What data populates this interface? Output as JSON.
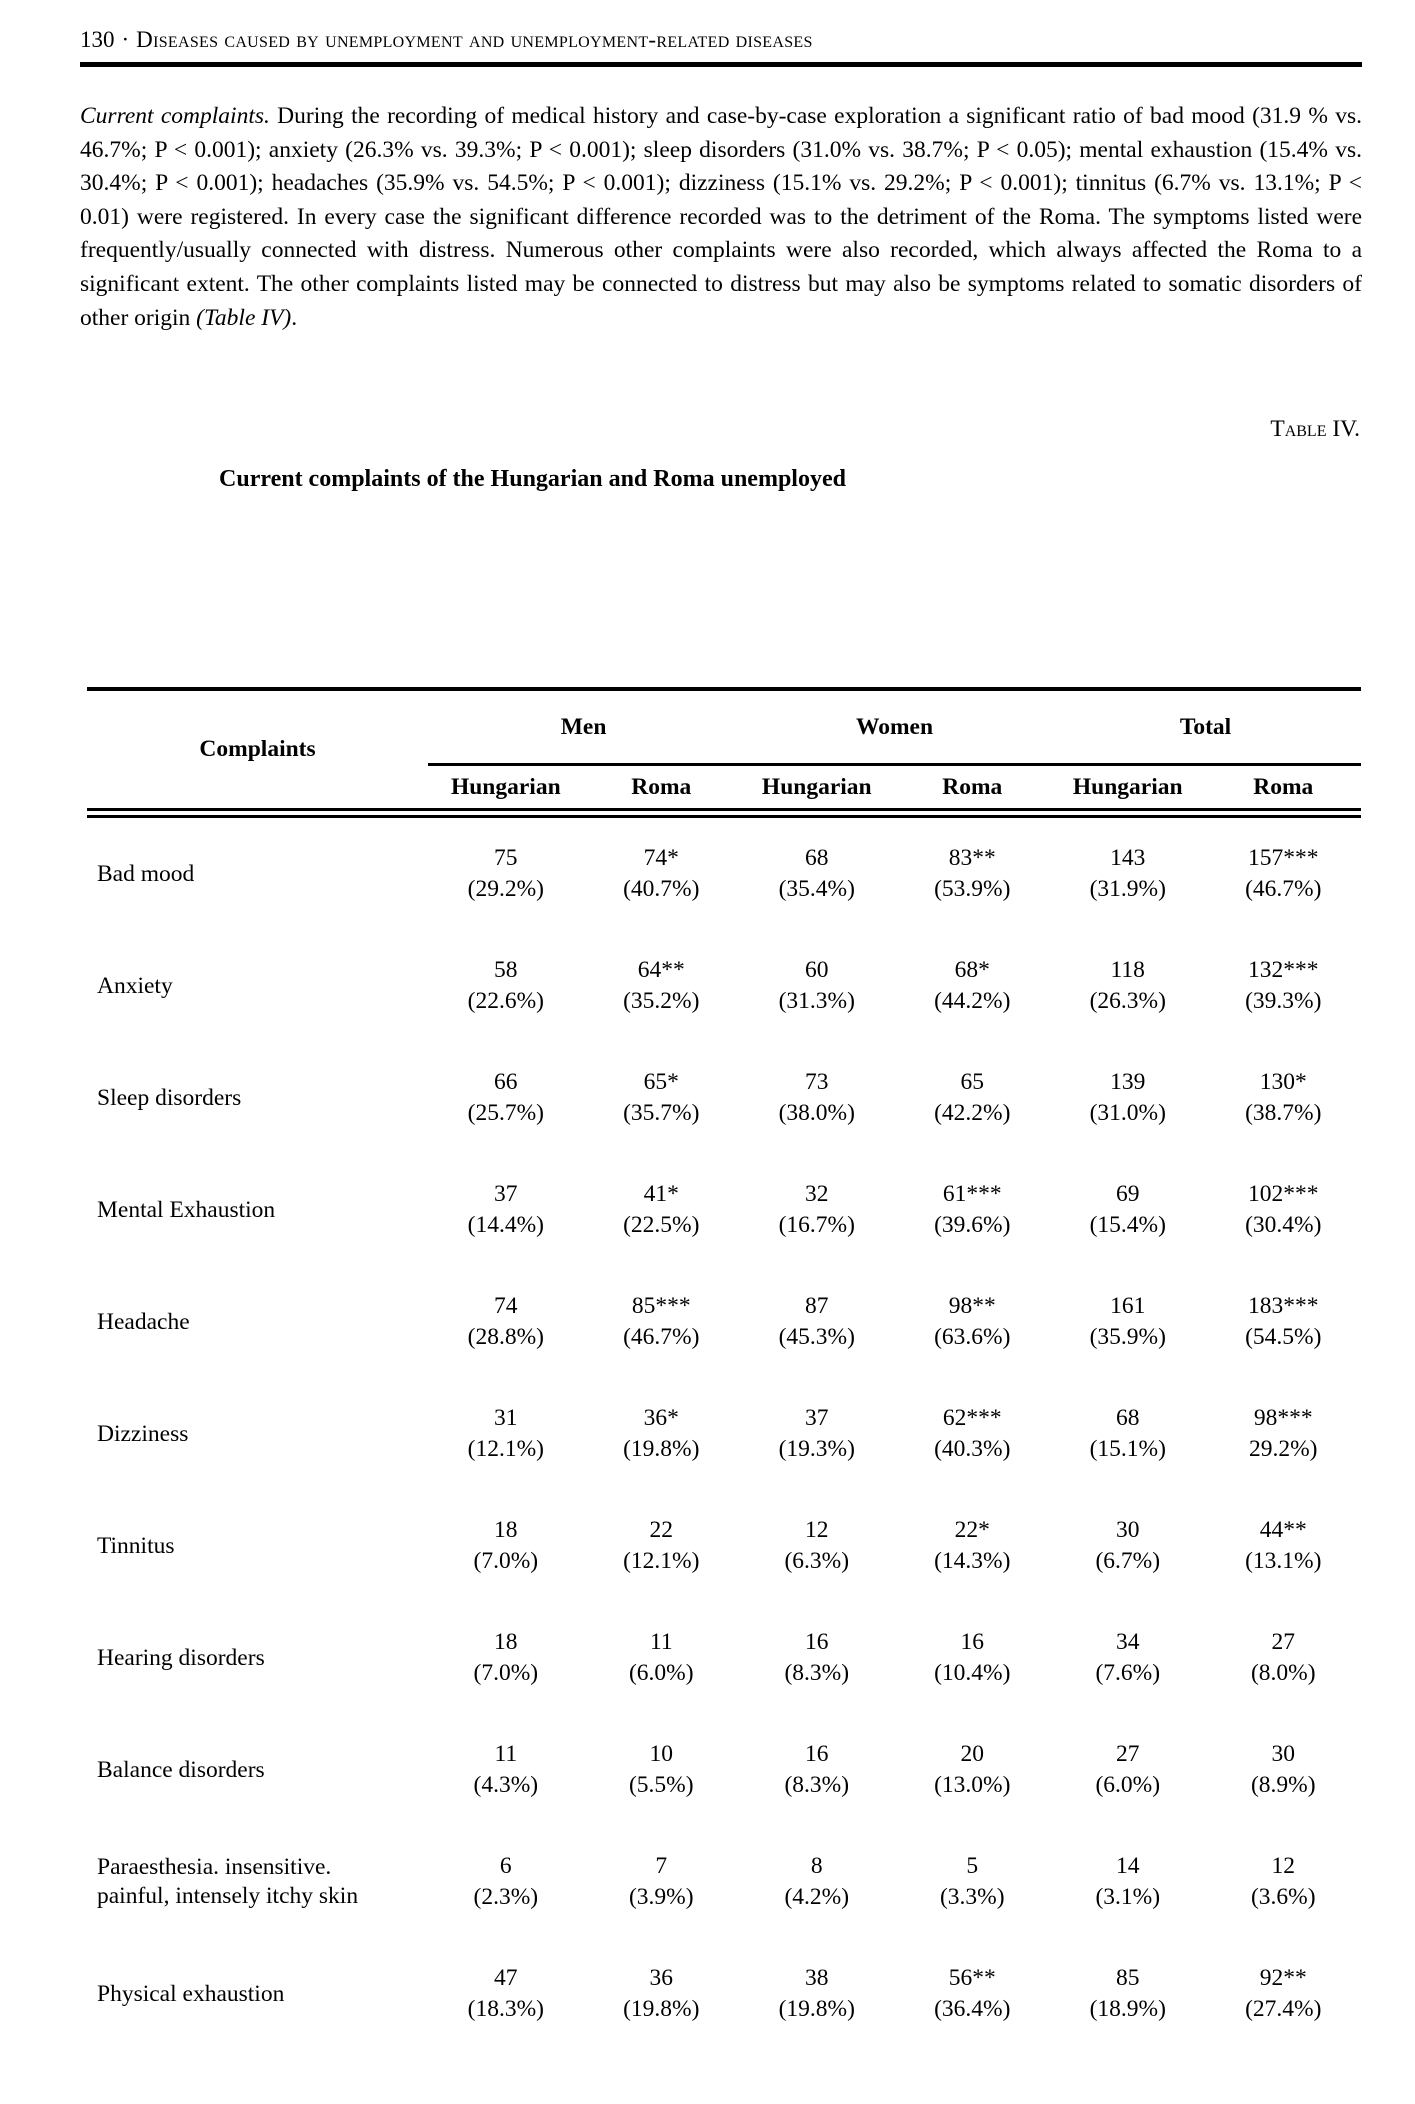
{
  "page": {
    "number": "130",
    "separator": "·",
    "running_title": "Diseases caused by unemployment and unemployment-related diseases"
  },
  "paragraph": {
    "lead_italic": "Current complaints.",
    "body": " During the recording of medical history and case-by-case exploration a significant ratio of bad mood (31.9 % vs. 46.7%; P < 0.001); anxiety (26.3% vs. 39.3%; P < 0.001); sleep disorders (31.0% vs. 38.7%; P < 0.05); mental exhaustion (15.4% vs. 30.4%; P < 0.001); headaches (35.9% vs. 54.5%; P < 0.001); dizziness (15.1% vs. 29.2%; P < 0.001); tinnitus (6.7% vs. 13.1%; P < 0.01) were registered. In every case the significant difference recorded was to the detriment of the Roma. The symptoms listed were frequently/usually connected with distress. Numerous other complaints were also recorded, which always affected the Roma to a significant extent. The other complaints listed may be connected to distress but may also be symptoms related to somatic disorders of other origin ",
    "tail_italic": "(Table IV)",
    "tail_end": "."
  },
  "table": {
    "label": "Table IV.",
    "title": "Current complaints of the Hungarian and Roma unemployed",
    "col_complaints": "Complaints",
    "groups": [
      "Men",
      "Women",
      "Total"
    ],
    "subheaders": [
      "Hungarian",
      "Roma",
      "Hungarian",
      "Roma",
      "Hungarian",
      "Roma"
    ],
    "rows": [
      {
        "label": [
          "Bad mood"
        ],
        "cells": [
          [
            "75",
            "(29.2%)"
          ],
          [
            "74*",
            "(40.7%)"
          ],
          [
            "68",
            "(35.4%)"
          ],
          [
            "83**",
            "(53.9%)"
          ],
          [
            "143",
            "(31.9%)"
          ],
          [
            "157***",
            "(46.7%)"
          ]
        ]
      },
      {
        "label": [
          "Anxiety"
        ],
        "cells": [
          [
            "58",
            "(22.6%)"
          ],
          [
            "64**",
            "(35.2%)"
          ],
          [
            "60",
            "(31.3%)"
          ],
          [
            "68*",
            "(44.2%)"
          ],
          [
            "118",
            "(26.3%)"
          ],
          [
            "132***",
            "(39.3%)"
          ]
        ]
      },
      {
        "label": [
          "Sleep disorders"
        ],
        "cells": [
          [
            "66",
            "(25.7%)"
          ],
          [
            "65*",
            "(35.7%)"
          ],
          [
            "73",
            "(38.0%)"
          ],
          [
            "65",
            "(42.2%)"
          ],
          [
            "139",
            "(31.0%)"
          ],
          [
            "130*",
            "(38.7%)"
          ]
        ]
      },
      {
        "label": [
          "Mental Exhaustion"
        ],
        "cells": [
          [
            "37",
            "(14.4%)"
          ],
          [
            "41*",
            "(22.5%)"
          ],
          [
            "32",
            "(16.7%)"
          ],
          [
            "61***",
            "(39.6%)"
          ],
          [
            "69",
            "(15.4%)"
          ],
          [
            "102***",
            "(30.4%)"
          ]
        ]
      },
      {
        "label": [
          "Headache"
        ],
        "cells": [
          [
            "74",
            "(28.8%)"
          ],
          [
            "85***",
            "(46.7%)"
          ],
          [
            "87",
            "(45.3%)"
          ],
          [
            "98**",
            "(63.6%)"
          ],
          [
            "161",
            "(35.9%)"
          ],
          [
            "183***",
            "(54.5%)"
          ]
        ]
      },
      {
        "label": [
          "Dizziness"
        ],
        "cells": [
          [
            "31",
            "(12.1%)"
          ],
          [
            "36*",
            "(19.8%)"
          ],
          [
            "37",
            "(19.3%)"
          ],
          [
            "62***",
            "(40.3%)"
          ],
          [
            "68",
            "(15.1%)"
          ],
          [
            "98***",
            "29.2%)"
          ]
        ]
      },
      {
        "label": [
          "Tinnitus"
        ],
        "cells": [
          [
            "18",
            "(7.0%)"
          ],
          [
            "22",
            "(12.1%)"
          ],
          [
            "12",
            "(6.3%)"
          ],
          [
            "22*",
            "(14.3%)"
          ],
          [
            "30",
            "(6.7%)"
          ],
          [
            "44**",
            "(13.1%)"
          ]
        ]
      },
      {
        "label": [
          "Hearing disorders"
        ],
        "cells": [
          [
            "18",
            "(7.0%)"
          ],
          [
            "11",
            "(6.0%)"
          ],
          [
            "16",
            "(8.3%)"
          ],
          [
            "16",
            "(10.4%)"
          ],
          [
            "34",
            "(7.6%)"
          ],
          [
            "27",
            "(8.0%)"
          ]
        ]
      },
      {
        "label": [
          "Balance disorders"
        ],
        "cells": [
          [
            "11",
            "(4.3%)"
          ],
          [
            "10",
            "(5.5%)"
          ],
          [
            "16",
            "(8.3%)"
          ],
          [
            "20",
            "(13.0%)"
          ],
          [
            "27",
            "(6.0%)"
          ],
          [
            "30",
            "(8.9%)"
          ]
        ]
      },
      {
        "label": [
          "Paraesthesia. insensitive.",
          "painful, intensely itchy skin"
        ],
        "cells": [
          [
            "6",
            "(2.3%)"
          ],
          [
            "7",
            "(3.9%)"
          ],
          [
            "8",
            "(4.2%)"
          ],
          [
            "5",
            "(3.3%)"
          ],
          [
            "14",
            "(3.1%)"
          ],
          [
            "12",
            "(3.6%)"
          ]
        ]
      },
      {
        "label": [
          "Physical exhaustion"
        ],
        "cells": [
          [
            "47",
            "(18.3%)"
          ],
          [
            "36",
            "(19.8%)"
          ],
          [
            "38",
            "(19.8%)"
          ],
          [
            "56**",
            "(36.4%)"
          ],
          [
            "85",
            "(18.9%)"
          ],
          [
            "92**",
            "(27.4%)"
          ]
        ]
      }
    ]
  }
}
